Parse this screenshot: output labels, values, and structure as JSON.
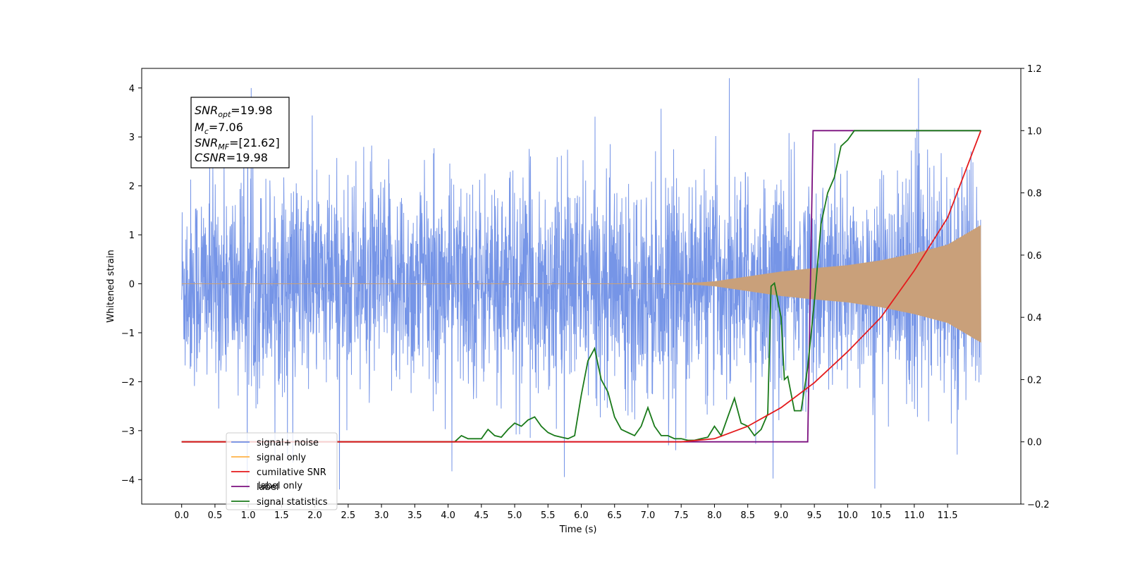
{
  "chart_data": {
    "type": "line",
    "xlabel": "Time (s)",
    "ylabel": "Whitened strain",
    "xlim": [
      -0.6,
      12.6
    ],
    "ylim_left": [
      -4.5,
      4.4
    ],
    "ylim_right": [
      -0.2,
      1.2
    ],
    "x_ticks": [
      0.0,
      0.5,
      1.0,
      1.5,
      2.0,
      2.5,
      3.0,
      3.5,
      4.0,
      4.5,
      5.0,
      5.5,
      6.0,
      6.5,
      7.0,
      7.5,
      8.0,
      8.5,
      9.0,
      9.5,
      10.0,
      10.5,
      11.0,
      11.5
    ],
    "x_tick_labels": [
      "0.0",
      "0.5",
      "1.0",
      "1.5",
      "2.0",
      "2.5",
      "3.0",
      "3.5",
      "4.0",
      "4.5",
      "5.0",
      "5.5",
      "6.0",
      "6.5",
      "7.0",
      "7.5",
      "8.0",
      "8.5",
      "9.0",
      "9.5",
      "10.0",
      "10.5",
      "11.0",
      "11.5"
    ],
    "y_left_ticks": [
      4,
      3,
      2,
      1,
      0,
      -1,
      -2,
      -3,
      -4
    ],
    "y_left_tick_labels": [
      "4",
      "3",
      "2",
      "1",
      "0",
      "−1",
      "−2",
      "−3",
      "−4"
    ],
    "y_right_ticks": [
      1.2,
      1.0,
      0.8,
      0.6,
      0.4,
      0.2,
      0.0,
      -0.2
    ],
    "y_right_tick_labels": [
      "1.2",
      "1.0",
      "0.8",
      "0.6",
      "0.4",
      "0.2",
      "0.0",
      "−0.2"
    ],
    "annotation": {
      "line1_main": "SNR",
      "line1_sub": "opt",
      "line1_value": "=19.98",
      "line2_main": "M",
      "line2_sub": "c",
      "line2_value": "=7.06",
      "line3_main": "SNR",
      "line3_sub": "MF",
      "line3_value": "=[21.62]",
      "line4_main": "CSNR",
      "line4_value": "=19.98"
    },
    "legend_position": "lower-left",
    "series": [
      {
        "name": "signal+ noise",
        "axis": "left",
        "color": "#6f8fe6",
        "description_range": "noise with spread about ±1, peaks about ±4, x 0 to 12"
      },
      {
        "name": "signal only",
        "axis": "left",
        "color": "#ffb347",
        "envelope": {
          "x": [
            0,
            7.5,
            8.0,
            8.5,
            9.0,
            9.5,
            10.0,
            10.5,
            11.0,
            11.5,
            12.0
          ],
          "amp": [
            0.0,
            0.0,
            0.05,
            0.15,
            0.25,
            0.32,
            0.38,
            0.48,
            0.62,
            0.8,
            1.2
          ]
        }
      },
      {
        "name": "cumilative SNR",
        "axis": "right",
        "color": "#e41a1c",
        "x": [
          0,
          7.5,
          8.0,
          8.5,
          9.0,
          9.5,
          10.0,
          10.5,
          11.0,
          11.5,
          12.0
        ],
        "y": [
          0.0,
          0.0,
          0.01,
          0.05,
          0.11,
          0.19,
          0.29,
          0.4,
          0.55,
          0.72,
          1.0
        ]
      },
      {
        "name": "label",
        "axis": "right",
        "color": "#7b0f7f",
        "x": [
          0,
          9.4,
          9.48,
          12.0
        ],
        "y": [
          0.0,
          0.0,
          1.0,
          1.0
        ]
      },
      {
        "name": "signal statistics",
        "axis": "right",
        "color": "#1a7a1a",
        "x": [
          0,
          4.1,
          4.2,
          4.3,
          4.5,
          4.6,
          4.7,
          4.8,
          4.9,
          5.0,
          5.1,
          5.2,
          5.3,
          5.4,
          5.5,
          5.6,
          5.7,
          5.8,
          5.9,
          6.0,
          6.1,
          6.2,
          6.3,
          6.4,
          6.5,
          6.6,
          6.7,
          6.8,
          6.9,
          7.0,
          7.1,
          7.2,
          7.3,
          7.4,
          7.5,
          7.6,
          7.7,
          7.8,
          7.9,
          8.0,
          8.1,
          8.2,
          8.3,
          8.4,
          8.5,
          8.6,
          8.7,
          8.8,
          8.85,
          8.9,
          9.0,
          9.05,
          9.1,
          9.2,
          9.3,
          9.4,
          9.5,
          9.6,
          9.7,
          9.8,
          9.9,
          10.0,
          10.1,
          10.2,
          10.3,
          12.0
        ],
        "y": [
          0.0,
          0.0,
          0.02,
          0.01,
          0.01,
          0.04,
          0.02,
          0.015,
          0.04,
          0.06,
          0.05,
          0.07,
          0.08,
          0.05,
          0.03,
          0.02,
          0.015,
          0.01,
          0.02,
          0.15,
          0.26,
          0.3,
          0.2,
          0.16,
          0.08,
          0.04,
          0.03,
          0.02,
          0.05,
          0.11,
          0.05,
          0.02,
          0.02,
          0.01,
          0.01,
          0.005,
          0.005,
          0.01,
          0.015,
          0.05,
          0.02,
          0.08,
          0.14,
          0.06,
          0.05,
          0.02,
          0.04,
          0.09,
          0.5,
          0.51,
          0.4,
          0.2,
          0.21,
          0.1,
          0.1,
          0.24,
          0.45,
          0.7,
          0.8,
          0.85,
          0.95,
          0.97,
          1.0,
          1.0,
          1.0,
          1.0
        ]
      }
    ],
    "legend_entries": [
      "signal+ noise",
      "signal only",
      "cumilative SNR",
      "label",
      "signal statistics"
    ],
    "legend_hidden_text": "label only"
  }
}
